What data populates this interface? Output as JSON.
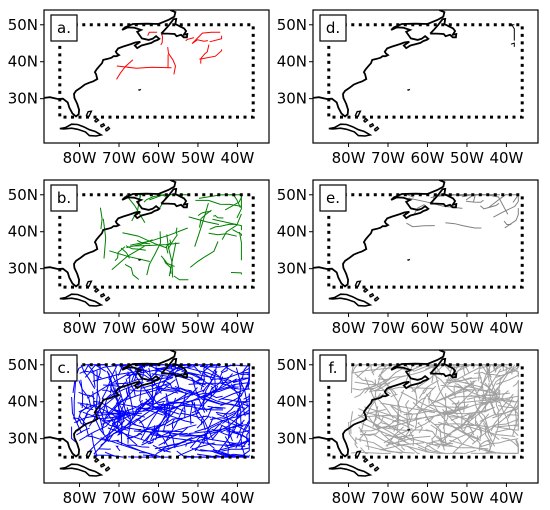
{
  "figure": {
    "projection": "lon-lat",
    "extent": {
      "lon": [
        -89,
        -32
      ],
      "lat": [
        18,
        54
      ]
    },
    "box": {
      "lon": [
        -85,
        -36
      ],
      "lat": [
        25,
        50
      ]
    },
    "ticks": {
      "x": [
        {
          "lon": -80,
          "label": "80W"
        },
        {
          "lon": -70,
          "label": "70W"
        },
        {
          "lon": -60,
          "label": "60W"
        },
        {
          "lon": -50,
          "label": "50W"
        },
        {
          "lon": -40,
          "label": "40W"
        }
      ],
      "y": [
        {
          "lat": 50,
          "label": "50N"
        },
        {
          "lat": 40,
          "label": "40N"
        },
        {
          "lat": 30,
          "label": "30N"
        }
      ]
    }
  },
  "panels": [
    {
      "id": "a",
      "label": "a.",
      "color": "#ff0000",
      "track_count": 12,
      "lon_range": [
        -71,
        -44
      ],
      "lat_range": [
        35,
        48
      ]
    },
    {
      "id": "b",
      "label": "b.",
      "color": "#008000",
      "track_count": 45,
      "lon_range": [
        -75,
        -39
      ],
      "lat_range": [
        27,
        50
      ]
    },
    {
      "id": "c",
      "label": "c.",
      "color": "#0000ff",
      "track_count": 320,
      "lon_range": [
        -82,
        -37
      ],
      "lat_range": [
        25,
        50
      ]
    },
    {
      "id": "d",
      "label": "d.",
      "color": "#000000",
      "track_count": 2,
      "lon_range": [
        -42,
        -38
      ],
      "lat_range": [
        44,
        50
      ]
    },
    {
      "id": "e",
      "label": "e.",
      "color": "#808080",
      "track_count": 22,
      "lon_range": [
        -66,
        -37
      ],
      "lat_range": [
        41,
        50
      ]
    },
    {
      "id": "f",
      "label": "f.",
      "color": "#a0a0a0",
      "track_count": 260,
      "lon_range": [
        -80,
        -37
      ],
      "lat_range": [
        26,
        50
      ]
    }
  ]
}
